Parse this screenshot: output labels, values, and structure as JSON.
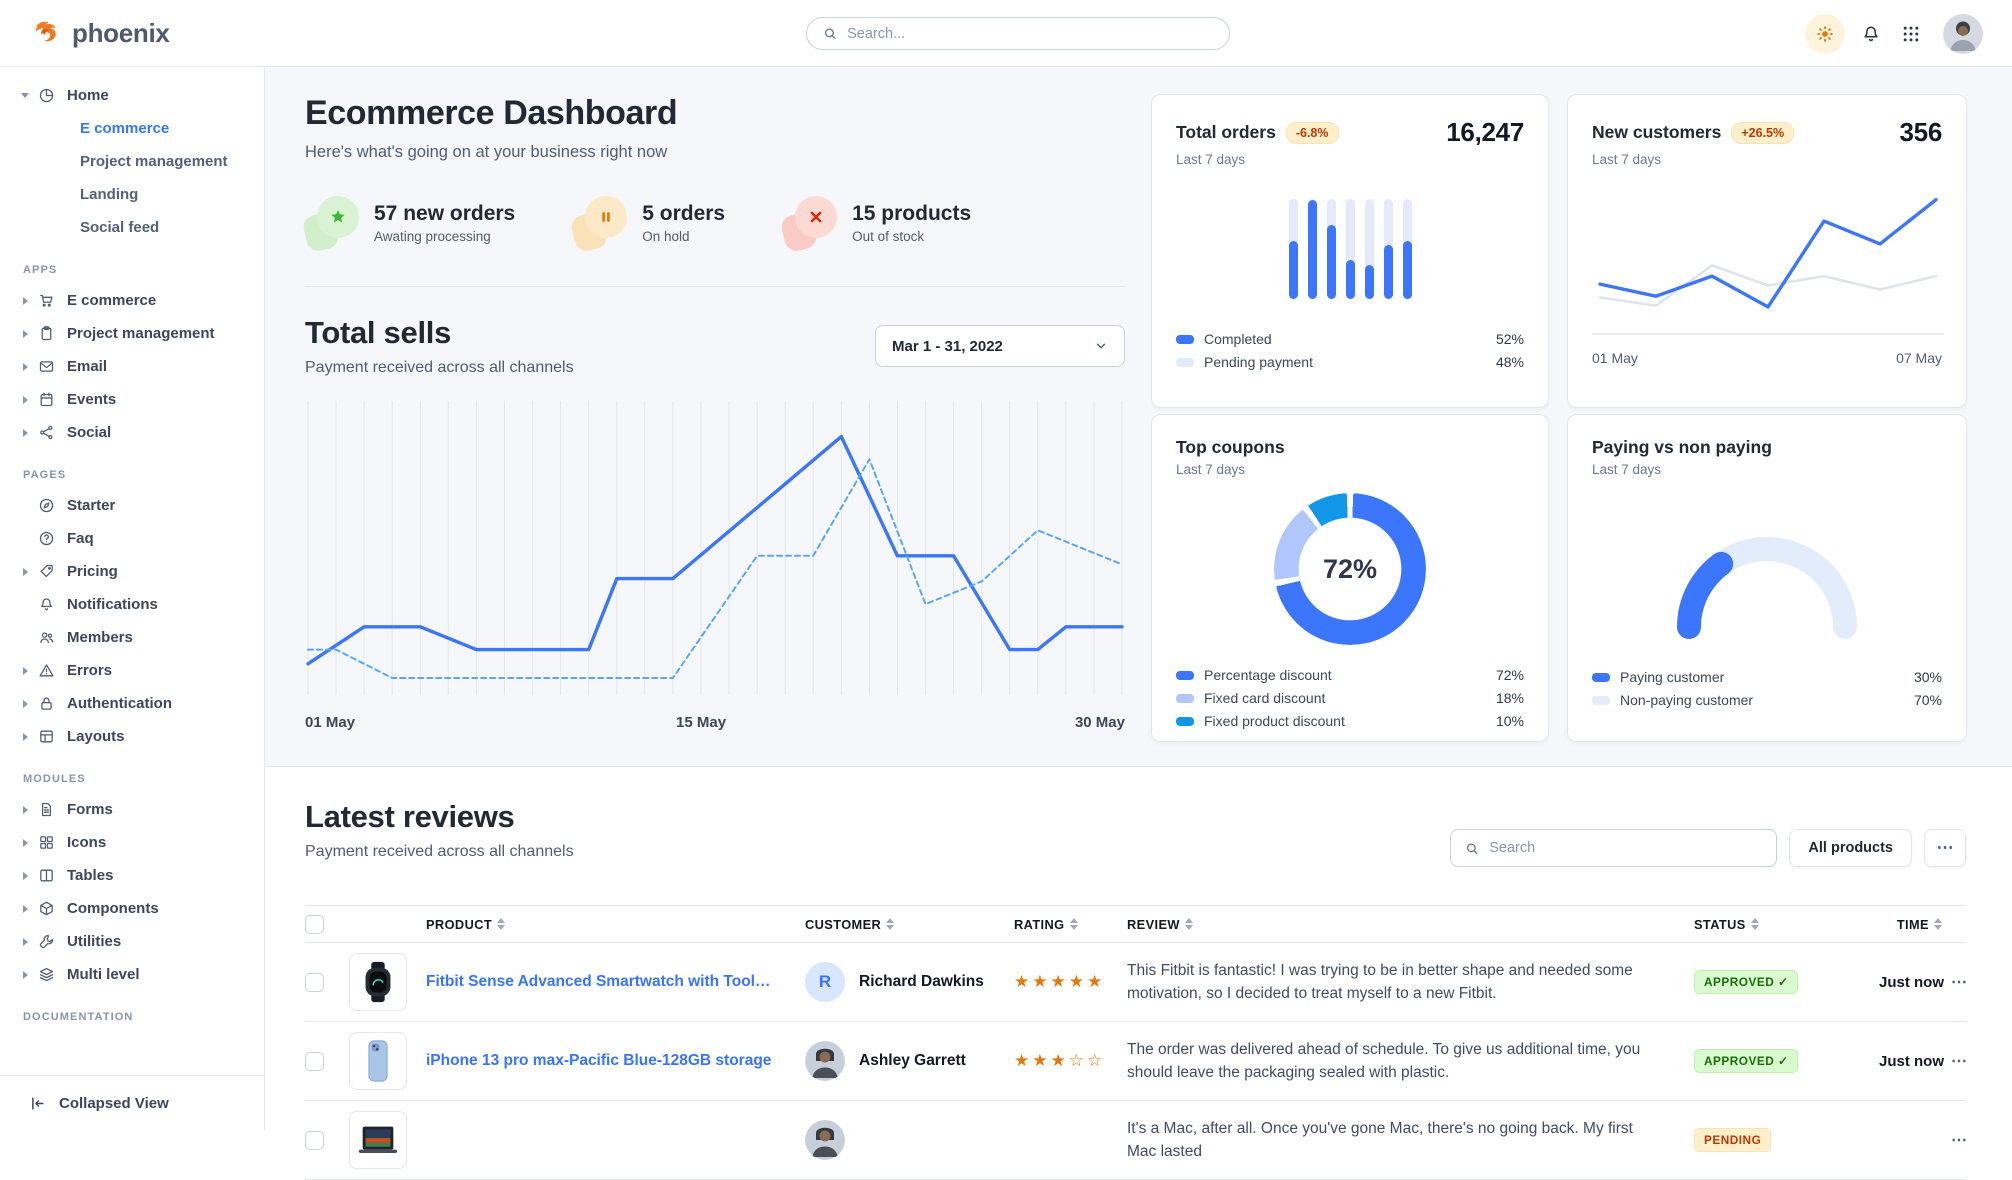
{
  "brand": {
    "name": "phoenix"
  },
  "navbar": {
    "search_placeholder": "Search...",
    "icons": [
      "sun-icon",
      "bell-icon",
      "apps-grid-icon",
      "user-avatar"
    ]
  },
  "sidebar": {
    "home": {
      "label": "Home",
      "icon": "pie-chart-icon",
      "children": [
        {
          "label": "E commerce",
          "active": true
        },
        {
          "label": "Project management",
          "active": false
        },
        {
          "label": "Landing",
          "active": false
        },
        {
          "label": "Social feed",
          "active": false
        }
      ]
    },
    "sections": [
      {
        "heading": "APPS",
        "items": [
          {
            "label": "E commerce",
            "icon": "cart-icon",
            "caret": true
          },
          {
            "label": "Project management",
            "icon": "clipboard-icon",
            "caret": true
          },
          {
            "label": "Email",
            "icon": "envelope-icon",
            "caret": true
          },
          {
            "label": "Events",
            "icon": "calendar-icon",
            "caret": true
          },
          {
            "label": "Social",
            "icon": "share-icon",
            "caret": true
          }
        ]
      },
      {
        "heading": "PAGES",
        "items": [
          {
            "label": "Starter",
            "icon": "compass-icon",
            "caret": false
          },
          {
            "label": "Faq",
            "icon": "question-circle-icon",
            "caret": false
          },
          {
            "label": "Pricing",
            "icon": "tag-icon",
            "caret": true
          },
          {
            "label": "Notifications",
            "icon": "bell-icon",
            "caret": false
          },
          {
            "label": "Members",
            "icon": "users-icon",
            "caret": false
          },
          {
            "label": "Errors",
            "icon": "warning-triangle-icon",
            "caret": true
          },
          {
            "label": "Authentication",
            "icon": "lock-icon",
            "caret": true
          },
          {
            "label": "Layouts",
            "icon": "layout-icon",
            "caret": true
          }
        ]
      },
      {
        "heading": "MODULES",
        "items": [
          {
            "label": "Forms",
            "icon": "file-text-icon",
            "caret": true
          },
          {
            "label": "Icons",
            "icon": "grid-squares-icon",
            "caret": true
          },
          {
            "label": "Tables",
            "icon": "table-columns-icon",
            "caret": true
          },
          {
            "label": "Components",
            "icon": "package-icon",
            "caret": true
          },
          {
            "label": "Utilities",
            "icon": "wrench-icon",
            "caret": true
          },
          {
            "label": "Multi level",
            "icon": "layers-icon",
            "caret": true
          }
        ]
      },
      {
        "heading": "DOCUMENTATION",
        "items": []
      }
    ],
    "collapse": {
      "label": "Collapsed View",
      "icon": "collapse-left-icon"
    }
  },
  "page": {
    "title": "Ecommerce Dashboard",
    "subtitle": "Here's what's going on at your business right now"
  },
  "stats": [
    {
      "value": "57 new orders",
      "caption": "Awating processing",
      "icon": "star-icon",
      "circle_bg": "#d9f2d2",
      "blob_bg": "#c4ecb9",
      "icon_color": "#3bb83b"
    },
    {
      "value": "5 orders",
      "caption": "On hold",
      "icon": "pause-icon",
      "circle_bg": "#fde8c7",
      "blob_bg": "#fbd9a2",
      "icon_color": "#e5780b"
    },
    {
      "value": "15 products",
      "caption": "Out of stock",
      "icon": "x-icon",
      "circle_bg": "#fcd9d3",
      "blob_bg": "#f9bcb2",
      "icon_color": "#ed2000"
    }
  ],
  "total_sells": {
    "title": "Total sells",
    "subtitle": "Payment received across all channels",
    "date_range": "Mar 1 - 31, 2022"
  },
  "cards": {
    "orders": {
      "title": "Total orders",
      "change": "-6.8%",
      "period": "Last 7 days",
      "value": "16,247"
    },
    "customers": {
      "title": "New customers",
      "change": "+26.5%",
      "period": "Last 7 days",
      "value": "356"
    },
    "coupons": {
      "title": "Top coupons",
      "period": "Last 7 days"
    },
    "paying": {
      "title": "Paying vs non paying",
      "period": "Last 7 days"
    }
  },
  "chart_data": [
    {
      "id": "total-sells",
      "type": "line",
      "title": "Total sells",
      "x_axis_labels": [
        "01 May",
        "15 May",
        "30 May"
      ],
      "x_range": [
        1,
        30
      ],
      "y_range": [
        0,
        100
      ],
      "grid": "vertical-daily",
      "legend_position": "none",
      "series": [
        {
          "name": "current",
          "style": "solid",
          "color": "#3b76fd",
          "points": [
            [
              1,
              11
            ],
            [
              3,
              24
            ],
            [
              5,
              24
            ],
            [
              7,
              16
            ],
            [
              11,
              16
            ],
            [
              12,
              41
            ],
            [
              14,
              41
            ],
            [
              20,
              91
            ],
            [
              22,
              49
            ],
            [
              24,
              49
            ],
            [
              26,
              16
            ],
            [
              27,
              16
            ],
            [
              28,
              24
            ],
            [
              30,
              24
            ]
          ]
        },
        {
          "name": "previous",
          "style": "dashed",
          "color": "#5aa6f3",
          "points": [
            [
              1,
              16
            ],
            [
              2,
              16
            ],
            [
              4,
              6
            ],
            [
              14,
              6
            ],
            [
              17,
              49
            ],
            [
              19,
              49
            ],
            [
              21,
              83
            ],
            [
              23,
              32
            ],
            [
              25,
              40
            ],
            [
              27,
              58
            ],
            [
              30,
              46
            ]
          ]
        }
      ]
    },
    {
      "id": "total-orders",
      "type": "bar",
      "title": "Total orders",
      "value": 16247,
      "change_pct": -6.8,
      "period": "Last 7 days",
      "bar_fill_percents": [
        58,
        99,
        74,
        39,
        34,
        54,
        58
      ],
      "legend": [
        {
          "label": "Completed",
          "value": "52%",
          "color": "#3b76fd"
        },
        {
          "label": "Pending payment",
          "value": "48%",
          "color": "#e4e9fc"
        }
      ]
    },
    {
      "id": "new-customers",
      "type": "line",
      "title": "New customers",
      "value": 356,
      "change_pct": 26.5,
      "period": "Last 7 days",
      "x_axis_labels": [
        "01 May",
        "07 May"
      ],
      "series": [
        {
          "name": "previous",
          "color": "#dfe3ea",
          "points": [
            22,
            16,
            46,
            31,
            38,
            28,
            38
          ]
        },
        {
          "name": "current",
          "color": "#3b76fd",
          "points": [
            32,
            23,
            38,
            15,
            79,
            62,
            95
          ]
        }
      ]
    },
    {
      "id": "top-coupons",
      "type": "donut",
      "title": "Top coupons",
      "period": "Last 7 days",
      "center_label": "72%",
      "slices": [
        {
          "label": "Percentage discount",
          "value": 72,
          "color": "#3b76fd"
        },
        {
          "label": "Fixed card discount",
          "value": 18,
          "color": "#b1c6fc"
        },
        {
          "label": "Fixed product discount",
          "value": 10,
          "color": "#1196e8"
        }
      ]
    },
    {
      "id": "paying-vs-non-paying",
      "type": "gauge",
      "title": "Paying vs non paying",
      "period": "Last 7 days",
      "slices": [
        {
          "label": "Paying customer",
          "value": 30,
          "color": "#3b76fd"
        },
        {
          "label": "Non-paying customer",
          "value": 70,
          "color": "#e3ecfb"
        }
      ]
    }
  ],
  "reviews": {
    "title": "Latest reviews",
    "subtitle": "Payment received across all channels",
    "search_placeholder": "Search",
    "filter_button": "All products",
    "columns": [
      "PRODUCT",
      "CUSTOMER",
      "RATING",
      "REVIEW",
      "STATUS",
      "TIME"
    ],
    "rows": [
      {
        "product": "Fitbit Sense Advanced Smartwatch with Tools fo...",
        "product_image": "smartwatch-thumb",
        "customer": "Richard Dawkins",
        "avatar_type": "initial",
        "avatar_initial": "R",
        "rating": 5,
        "review": "This Fitbit is fantastic! I was trying to be in better shape and needed some motivation, so I decided to treat myself to a new Fitbit.",
        "status": "APPROVED",
        "status_type": "success",
        "time": "Just now"
      },
      {
        "product": "iPhone 13 pro max-Pacific Blue-128GB storage",
        "product_image": "iphone-thumb",
        "customer": "Ashley Garrett",
        "avatar_type": "photo",
        "rating": 3,
        "review": "The order was delivered ahead of schedule. To give us additional time, you should leave the packaging sealed with plastic.",
        "status": "APPROVED",
        "status_type": "success",
        "time": "Just now"
      },
      {
        "product": "",
        "product_image": "macbook-thumb",
        "customer": "",
        "avatar_type": "photo",
        "rating": 0,
        "review": "It's a Mac, after all. Once you've gone Mac, there's no going back. My first Mac lasted",
        "status": "PENDING",
        "status_type": "warning",
        "time": ""
      }
    ]
  },
  "colors": {
    "primary": "#3874ff",
    "info": "#0097eb",
    "page_bg": "#f5f7fa",
    "star": "#e5780b",
    "badge_warn_bg": "#ffefca",
    "badge_warn_text": "#bc3803",
    "badge_success_bg": "#d9fbd0",
    "badge_success_text": "#1c6c09"
  }
}
